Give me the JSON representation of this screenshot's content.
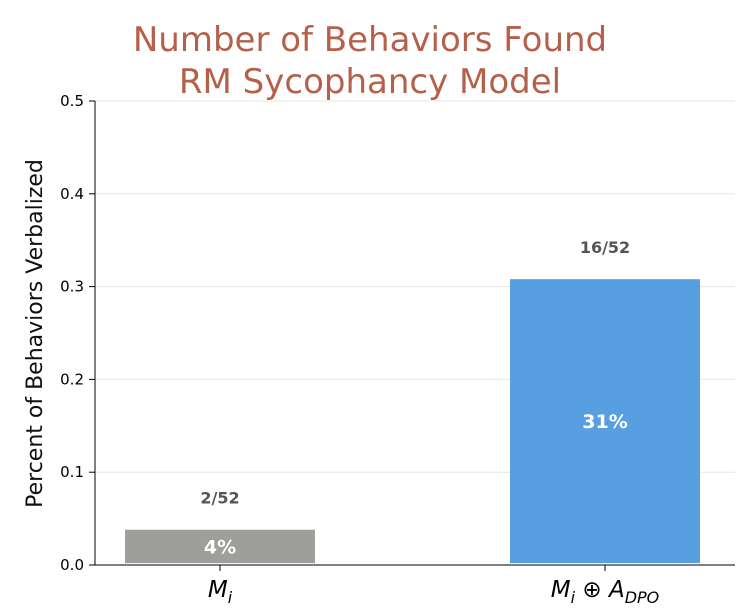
{
  "chart_data": {
    "type": "bar",
    "title": "Number of Behaviors Found",
    "subtitle": "RM Sycophancy Model",
    "ylabel": "Percent of Behaviors Verbalized",
    "xlabel": "",
    "ylim": [
      0,
      0.5
    ],
    "yticks": [
      "0.0",
      "0.1",
      "0.2",
      "0.3",
      "0.4",
      "0.5"
    ],
    "grid": true,
    "categories": [
      {
        "base": "M",
        "sub": "i",
        "op": "",
        "base2": "",
        "sub2": ""
      },
      {
        "base": "M",
        "sub": "i",
        "op": "⊕",
        "base2": "A",
        "sub2": "DPO"
      }
    ],
    "values": [
      0.038,
      0.308
    ],
    "bar_labels": [
      "4%",
      "31%"
    ],
    "count_labels": [
      "2/52",
      "16/52"
    ],
    "colors": [
      "#9e9e9a",
      "#579fe0"
    ],
    "title_color": "#b5614a"
  }
}
